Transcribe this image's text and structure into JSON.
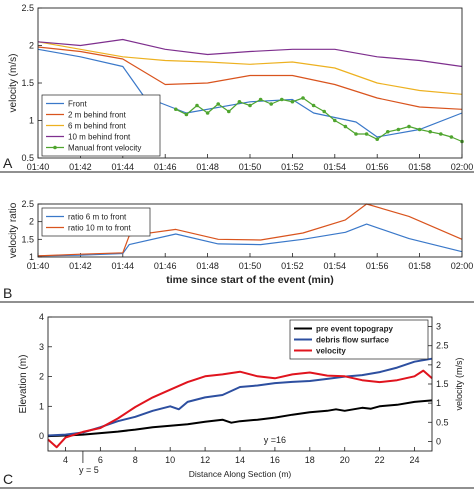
{
  "panels": [
    {
      "letter": "A"
    },
    {
      "letter": "B"
    },
    {
      "letter": "C"
    }
  ],
  "chart_data": [
    {
      "type": "line",
      "panel": "A",
      "xlabel": "",
      "ylabel": "velocity (m/s)",
      "x_ticks": [
        "01:40",
        "01:42",
        "01:44",
        "01:46",
        "01:48",
        "01:50",
        "01:52",
        "01:54",
        "01:56",
        "01:58",
        "02:00"
      ],
      "xlim": [
        100,
        120
      ],
      "ylim": [
        0.5,
        2.5
      ],
      "y_ticks": [
        0.5,
        1,
        1.5,
        2,
        2.5
      ],
      "legend_position": "bottom-left",
      "series": [
        {
          "name": "Front",
          "color": "#3a78c9",
          "marker": "none",
          "x": [
            100,
            102,
            104,
            105,
            107,
            110,
            112,
            113,
            115,
            116,
            118,
            120
          ],
          "y": [
            1.95,
            1.85,
            1.72,
            1.32,
            1.1,
            1.25,
            1.28,
            1.1,
            0.98,
            0.78,
            0.88,
            1.1
          ]
        },
        {
          "name": "2 m behind front",
          "color": "#d9541e",
          "marker": "none",
          "x": [
            100,
            102,
            104,
            106,
            108,
            110,
            112,
            114,
            116,
            118,
            120
          ],
          "y": [
            1.98,
            1.92,
            1.82,
            1.48,
            1.5,
            1.6,
            1.6,
            1.48,
            1.3,
            1.18,
            1.15
          ]
        },
        {
          "name": "6 m behind front",
          "color": "#edb120",
          "marker": "none",
          "x": [
            100,
            102,
            104,
            106,
            108,
            110,
            112,
            114,
            116,
            118,
            120
          ],
          "y": [
            2.05,
            1.95,
            1.85,
            1.8,
            1.78,
            1.75,
            1.78,
            1.7,
            1.5,
            1.4,
            1.35
          ]
        },
        {
          "name": "10 m behind front",
          "color": "#7e2f8e",
          "marker": "none",
          "x": [
            100,
            102,
            104,
            106,
            108,
            110,
            112,
            114,
            116,
            118,
            120
          ],
          "y": [
            2.05,
            2.0,
            2.08,
            1.95,
            1.88,
            1.92,
            1.95,
            1.95,
            1.85,
            1.8,
            1.72
          ]
        },
        {
          "name": "Manual front velocity",
          "color": "#4fa52e",
          "marker": "circle",
          "x": [
            106.5,
            107,
            107.5,
            108,
            108.5,
            109,
            109.5,
            110,
            110.5,
            111,
            111.5,
            112,
            112.5,
            113,
            113.5,
            114,
            114.5,
            115,
            115.5,
            116,
            116.5,
            117,
            117.5,
            118,
            118.5,
            119,
            119.5,
            120
          ],
          "y": [
            1.15,
            1.08,
            1.2,
            1.1,
            1.22,
            1.12,
            1.25,
            1.2,
            1.28,
            1.22,
            1.28,
            1.25,
            1.3,
            1.2,
            1.12,
            1.0,
            0.92,
            0.82,
            0.82,
            0.75,
            0.85,
            0.88,
            0.92,
            0.88,
            0.85,
            0.82,
            0.78,
            0.72
          ]
        }
      ]
    },
    {
      "type": "line",
      "panel": "B",
      "xlabel": "time since start of the event (min)",
      "ylabel": "velocity ratio",
      "x_ticks": [
        "01:40",
        "01:42",
        "01:44",
        "01:46",
        "01:48",
        "01:50",
        "01:52",
        "01:54",
        "01:56",
        "01:58",
        "02:00"
      ],
      "xlim": [
        100,
        120
      ],
      "ylim": [
        1,
        2.5
      ],
      "y_ticks": [
        1,
        1.5,
        2,
        2.5
      ],
      "legend_position": "top-left",
      "series": [
        {
          "name": "ratio 6 m to front",
          "color": "#3a78c9",
          "x": [
            100,
            102,
            104,
            104.3,
            106.5,
            108.5,
            110.5,
            112.5,
            114.5,
            115.5,
            117.5,
            120
          ],
          "y": [
            1.03,
            1.05,
            1.1,
            1.35,
            1.65,
            1.37,
            1.35,
            1.5,
            1.7,
            1.93,
            1.52,
            1.15
          ]
        },
        {
          "name": "ratio 10 m to front",
          "color": "#d9541e",
          "x": [
            100,
            102,
            104,
            104.3,
            106.5,
            108.5,
            110.5,
            112.5,
            114.5,
            115.5,
            117.5,
            120
          ],
          "y": [
            1.03,
            1.08,
            1.12,
            1.6,
            1.78,
            1.5,
            1.48,
            1.68,
            2.05,
            2.5,
            2.15,
            1.5
          ]
        }
      ]
    },
    {
      "type": "line",
      "panel": "C",
      "xlabel": "Distance Along Section (m)",
      "ylabel": "Elevation (m)",
      "y2label": "velocity (m/s)",
      "xlim": [
        3,
        25
      ],
      "x_ticks": [
        4,
        6,
        8,
        10,
        12,
        14,
        16,
        18,
        20,
        22,
        24
      ],
      "ylim": [
        -0.5,
        4
      ],
      "y_ticks": [
        0,
        1,
        2,
        3,
        4
      ],
      "y2lim": [
        -0.25,
        3.25
      ],
      "y2_ticks": [
        0,
        0.5,
        1,
        1.5,
        2,
        2.5,
        3
      ],
      "legend_position": "top-right",
      "annotations": [
        {
          "text": "y = 5",
          "x": 5
        },
        {
          "text": "y =16",
          "x": 16
        }
      ],
      "series": [
        {
          "name": "pre event topograpy",
          "color": "#000000",
          "axis": "left",
          "x": [
            3,
            4,
            5,
            6,
            7,
            8,
            9,
            10,
            11,
            12,
            13,
            13.5,
            14,
            15,
            16,
            17,
            18,
            19,
            19.5,
            20,
            21,
            21.5,
            22,
            23,
            24,
            25
          ],
          "y": [
            0.0,
            0.02,
            0.05,
            0.1,
            0.15,
            0.22,
            0.3,
            0.35,
            0.4,
            0.48,
            0.55,
            0.45,
            0.5,
            0.55,
            0.62,
            0.72,
            0.8,
            0.85,
            0.9,
            0.85,
            0.95,
            0.92,
            1.0,
            1.05,
            1.15,
            1.2
          ]
        },
        {
          "name": "debris flow surface",
          "color": "#2d4fa0",
          "axis": "left",
          "x": [
            3,
            4,
            5,
            6,
            7,
            8,
            9,
            10,
            10.5,
            11,
            12,
            13,
            14,
            15,
            16,
            17,
            18,
            19,
            20,
            21,
            22,
            23,
            24,
            25
          ],
          "y": [
            0.02,
            0.05,
            0.12,
            0.3,
            0.5,
            0.65,
            0.85,
            1.0,
            0.9,
            1.15,
            1.3,
            1.38,
            1.65,
            1.7,
            1.78,
            1.82,
            1.85,
            1.92,
            2.0,
            2.05,
            2.15,
            2.3,
            2.5,
            2.6
          ]
        },
        {
          "name": "velocity",
          "color": "#e0141e",
          "axis": "right",
          "x": [
            3,
            3.5,
            4,
            5,
            6,
            7,
            8,
            9,
            10,
            11,
            12,
            13,
            14,
            15,
            16,
            17,
            18,
            19,
            20,
            21,
            22,
            23,
            24,
            24.5,
            25
          ],
          "y": [
            0.05,
            -0.15,
            0.1,
            0.25,
            0.35,
            0.6,
            0.9,
            1.15,
            1.35,
            1.55,
            1.7,
            1.75,
            1.82,
            1.7,
            1.65,
            1.75,
            1.8,
            1.72,
            1.7,
            1.6,
            1.55,
            1.6,
            1.7,
            1.85,
            1.65
          ]
        }
      ]
    }
  ]
}
